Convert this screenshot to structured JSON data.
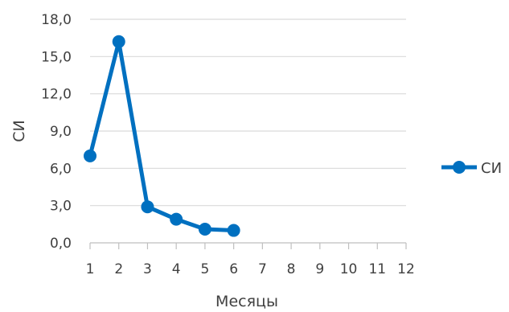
{
  "chart_data": {
    "type": "line",
    "x": [
      1,
      2,
      3,
      4,
      5,
      6
    ],
    "x_ticks": [
      "1",
      "2",
      "3",
      "4",
      "5",
      "6",
      "7",
      "8",
      "9",
      "10",
      "11",
      "12"
    ],
    "y_ticks": [
      "0,0",
      "3,0",
      "6,0",
      "9,0",
      "12,0",
      "15,0",
      "18,0"
    ],
    "xlim": [
      1,
      12
    ],
    "ylim": [
      0,
      18
    ],
    "xlabel": "Месяцы",
    "ylabel": "СИ",
    "series": [
      {
        "name": "СИ",
        "values": [
          7.0,
          16.2,
          2.9,
          1.9,
          1.1,
          1.0
        ]
      }
    ],
    "grid": "horizontal",
    "legend": "right",
    "colors": {
      "series": "#0070C0",
      "grid": "#d9d9d9",
      "axis": "#bfbfbf",
      "text": "#404040"
    }
  }
}
